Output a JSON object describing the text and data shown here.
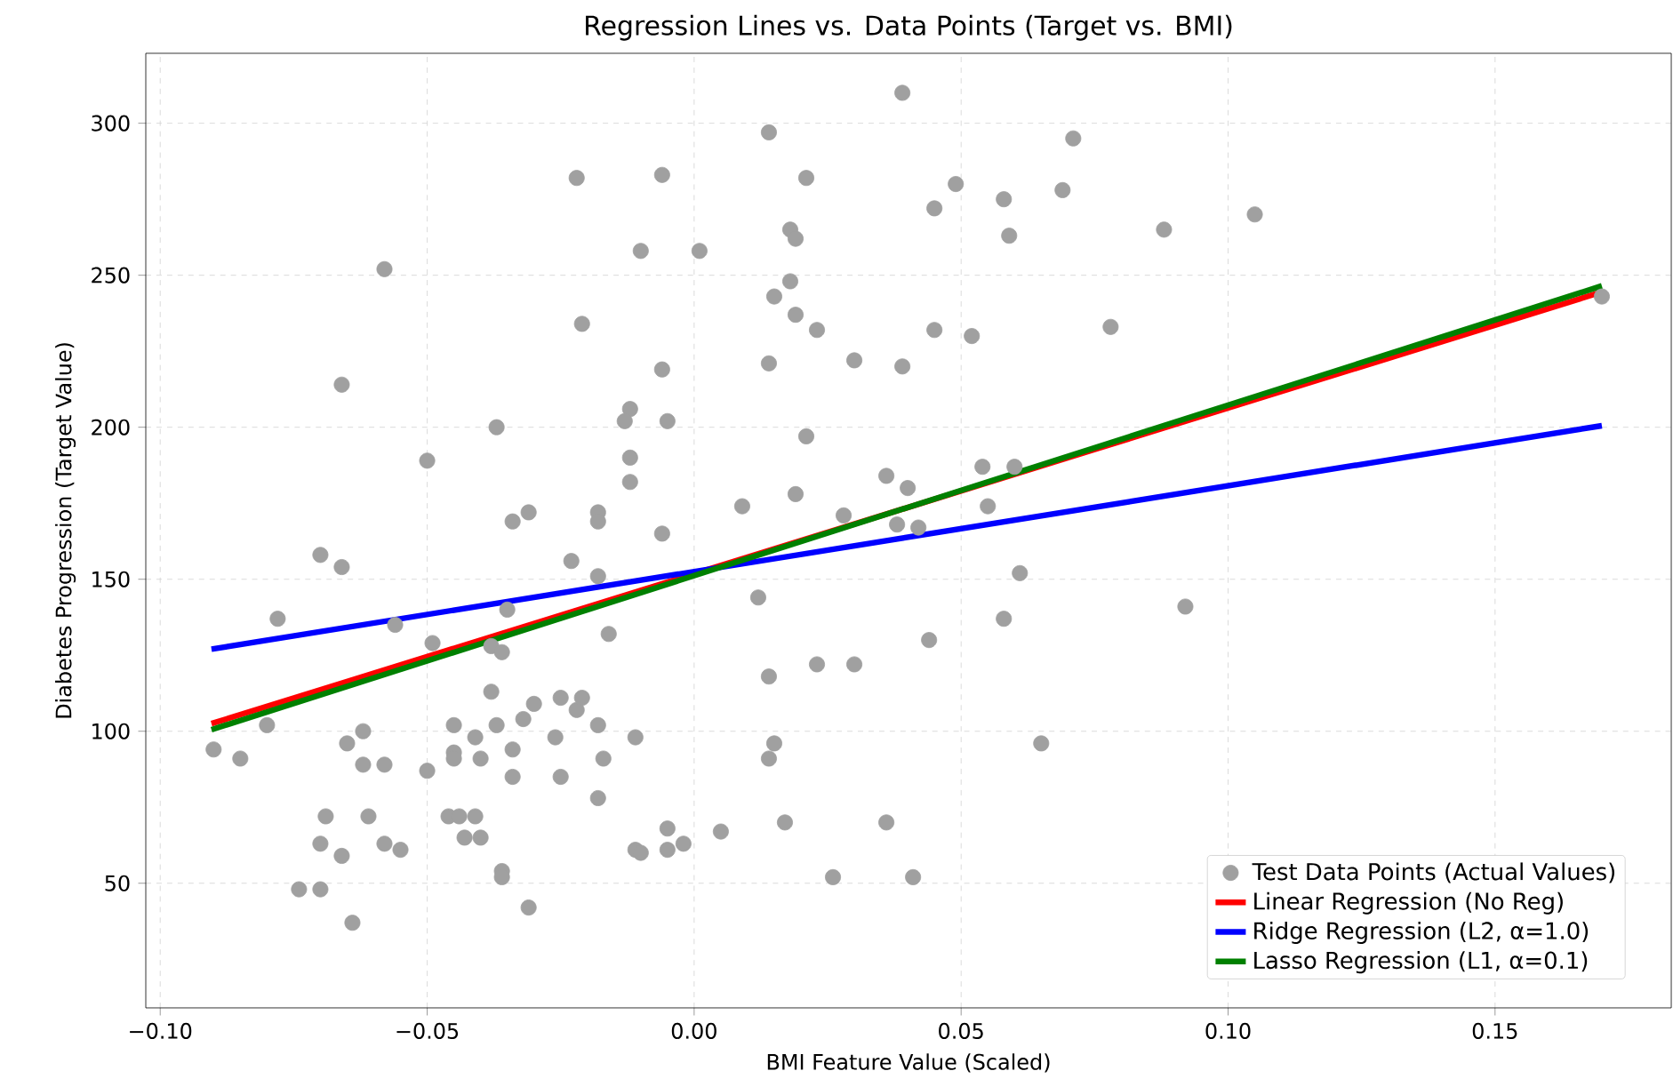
{
  "chart_data": {
    "type": "scatter",
    "title": "Regression Lines vs. Data Points (Target vs. BMI)",
    "xlabel": "BMI Feature Value (Scaled)",
    "ylabel": "Diabetes Progression (Target Value)",
    "xlim": [
      -0.1027,
      0.183
    ],
    "ylim": [
      9,
      323
    ],
    "xticks": [
      {
        "value": -0.1,
        "label": "−0.10"
      },
      {
        "value": -0.05,
        "label": "−0.05"
      },
      {
        "value": 0.0,
        "label": "0.00"
      },
      {
        "value": 0.05,
        "label": "0.05"
      },
      {
        "value": 0.1,
        "label": "0.10"
      },
      {
        "value": 0.15,
        "label": "0.15"
      }
    ],
    "yticks": [
      50,
      100,
      150,
      200,
      250,
      300
    ],
    "grid": true,
    "legend": "bottom right",
    "series": [
      {
        "name": "Test Data Points (Actual Values)",
        "marker": "circle",
        "color": "#a0a0a0",
        "x": [
          -0.022,
          -0.006,
          -0.01,
          -0.058,
          -0.021,
          -0.066,
          -0.006,
          -0.012,
          -0.013,
          -0.005,
          -0.037,
          -0.05,
          -0.012,
          -0.012,
          -0.031,
          -0.034,
          -0.018,
          -0.018,
          -0.006,
          0.039,
          0.014,
          0.071,
          0.021,
          0.049,
          0.069,
          0.058,
          0.045,
          0.088,
          0.059,
          0.001,
          0.018,
          0.019,
          0.018,
          0.015,
          0.019,
          0.023,
          0.045,
          0.052,
          0.078,
          0.014,
          0.03,
          0.039,
          0.021,
          0.054,
          0.06,
          0.036,
          0.04,
          0.019,
          0.009,
          0.055,
          0.028,
          0.038,
          0.042,
          0.105,
          0.17,
          -0.07,
          -0.066,
          -0.023,
          -0.018,
          -0.078,
          -0.056,
          -0.035,
          -0.016,
          -0.049,
          -0.038,
          -0.036,
          -0.038,
          -0.08,
          -0.09,
          -0.085,
          -0.065,
          -0.062,
          -0.062,
          -0.058,
          -0.05,
          -0.045,
          -0.045,
          -0.045,
          -0.041,
          -0.04,
          -0.037,
          -0.034,
          -0.034,
          -0.032,
          -0.03,
          -0.025,
          -0.026,
          -0.025,
          -0.022,
          -0.021,
          -0.018,
          -0.017,
          -0.018,
          -0.011,
          -0.005,
          -0.005,
          -0.011,
          -0.01,
          -0.069,
          -0.061,
          -0.07,
          -0.066,
          -0.058,
          -0.055,
          -0.046,
          -0.044,
          -0.041,
          -0.043,
          -0.04,
          -0.074,
          -0.07,
          -0.064,
          -0.036,
          -0.036,
          -0.031,
          0.061,
          0.012,
          0.092,
          0.058,
          0.044,
          0.014,
          0.023,
          0.03,
          0.015,
          0.014,
          0.065,
          -0.002,
          0.005,
          0.017,
          0.036,
          0.026,
          0.041
        ],
        "values": [
          282,
          283,
          258,
          252,
          234,
          214,
          219,
          206,
          202,
          202,
          200,
          189,
          190,
          182,
          172,
          169,
          172,
          169,
          165,
          310,
          297,
          295,
          282,
          280,
          278,
          275,
          272,
          265,
          263,
          258,
          265,
          262,
          248,
          243,
          237,
          232,
          232,
          230,
          233,
          221,
          222,
          220,
          197,
          187,
          187,
          184,
          180,
          178,
          174,
          174,
          171,
          168,
          167,
          270,
          243,
          158,
          154,
          156,
          151,
          137,
          135,
          140,
          132,
          129,
          128,
          126,
          113,
          102,
          94,
          91,
          96,
          100,
          89,
          89,
          87,
          102,
          93,
          91,
          98,
          91,
          102,
          94,
          85,
          104,
          109,
          111,
          98,
          85,
          107,
          111,
          102,
          91,
          78,
          98,
          68,
          61,
          61,
          60,
          72,
          72,
          63,
          59,
          63,
          61,
          72,
          72,
          72,
          65,
          65,
          48,
          48,
          37,
          54,
          52,
          42,
          152,
          144,
          141,
          137,
          130,
          118,
          122,
          122,
          96,
          91,
          96,
          63,
          67,
          70,
          70,
          52,
          52
        ]
      },
      {
        "name": "Linear Regression (No Reg)",
        "type": "line",
        "color": "#ff0000",
        "x": [
          -0.0904,
          0.17
        ],
        "values": [
          102.5,
          244.5
        ]
      },
      {
        "name": "Ridge Regression (L2, α=1.0)",
        "type": "line",
        "color": "#0000ff",
        "x": [
          -0.0904,
          0.17
        ],
        "values": [
          127,
          200.5
        ]
      },
      {
        "name": "Lasso Regression (L1, α=0.1)",
        "type": "line",
        "color": "#008000",
        "x": [
          -0.0904,
          0.17
        ],
        "values": [
          100.5,
          246.5
        ]
      }
    ]
  }
}
